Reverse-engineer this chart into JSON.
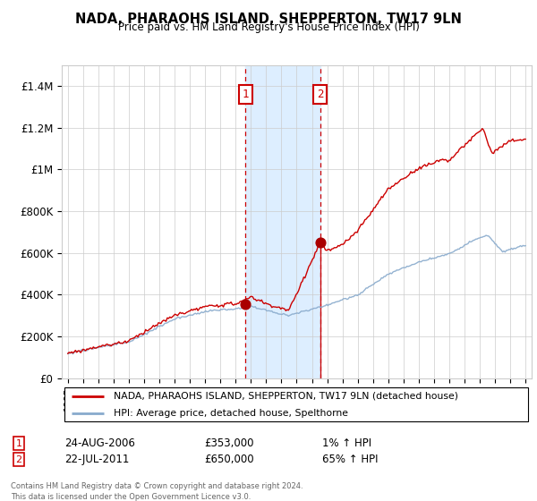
{
  "title": "NADA, PHARAOHS ISLAND, SHEPPERTON, TW17 9LN",
  "subtitle": "Price paid vs. HM Land Registry's House Price Index (HPI)",
  "legend_line1": "NADA, PHARAOHS ISLAND, SHEPPERTON, TW17 9LN (detached house)",
  "legend_line2": "HPI: Average price, detached house, Spelthorne",
  "sale1_date": "24-AUG-2006",
  "sale1_price": 353000,
  "sale1_hpi_text": "1% ↑ HPI",
  "sale1_label": "1",
  "sale2_date": "22-JUL-2011",
  "sale2_price": 650000,
  "sale2_hpi_text": "65% ↑ HPI",
  "sale2_label": "2",
  "footer": "Contains HM Land Registry data © Crown copyright and database right 2024.\nThis data is licensed under the Open Government Licence v3.0.",
  "red_color": "#cc0000",
  "blue_color": "#88aacc",
  "sale_dot_color": "#aa0000",
  "background_color": "#ffffff",
  "grid_color": "#cccccc",
  "highlight_color": "#ddeeff",
  "ylim": [
    0,
    1500000
  ],
  "yticks": [
    0,
    200000,
    400000,
    600000,
    800000,
    1000000,
    1200000,
    1400000
  ],
  "ytick_labels": [
    "£0",
    "£200K",
    "£400K",
    "£600K",
    "£800K",
    "£1M",
    "£1.2M",
    "£1.4M"
  ],
  "sale1_x": 2006.65,
  "sale2_x": 2011.55,
  "sale1_y": 353000,
  "sale2_y": 650000,
  "xmin": 1995,
  "xmax": 2025
}
